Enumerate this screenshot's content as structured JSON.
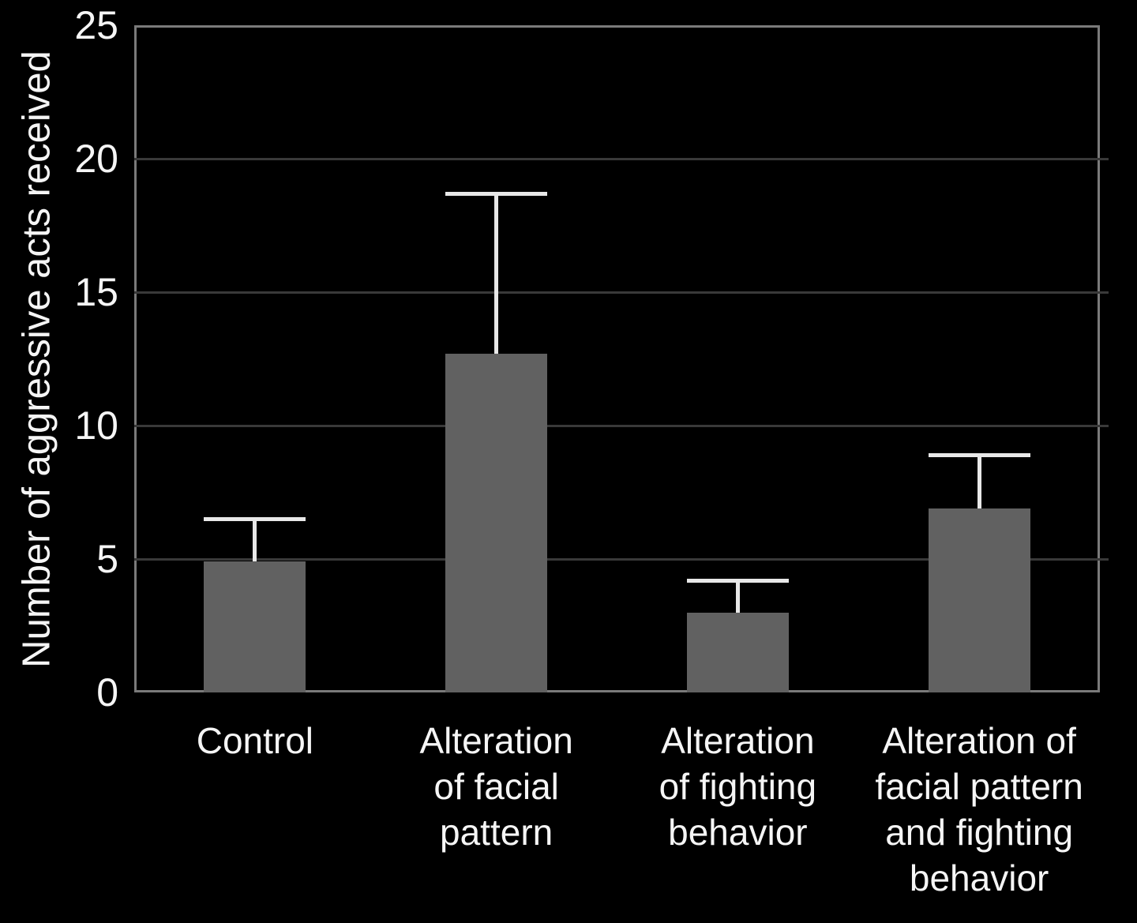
{
  "chart_data": {
    "type": "bar",
    "title": "",
    "xlabel": "",
    "ylabel": "Number of aggressive acts received",
    "categories": [
      "Control",
      "Alteration of facial pattern",
      "Alteration of fighting behavior",
      "Alteration of facial pattern and fighting behavior"
    ],
    "categories_lines": [
      [
        "Control"
      ],
      [
        "Alteration",
        "of facial",
        "pattern"
      ],
      [
        "Alteration",
        "of fighting",
        "behavior"
      ],
      [
        "Alteration of",
        "facial pattern",
        "and fighting",
        "behavior"
      ]
    ],
    "values": [
      4.9,
      12.7,
      3.0,
      6.9
    ],
    "error_upper": [
      6.5,
      18.7,
      4.2,
      8.9
    ],
    "ylim": [
      0,
      25
    ],
    "yticks": [
      0,
      5,
      10,
      15,
      20,
      25
    ],
    "grid": "horizontal",
    "legend_position": "none",
    "colors": {
      "background": "#000000",
      "bar": "#616161",
      "gridline": "#393939",
      "plot_border": "#7a7a7a",
      "error_bar": "#e8e8e8",
      "text": "#f5f5f5"
    }
  }
}
